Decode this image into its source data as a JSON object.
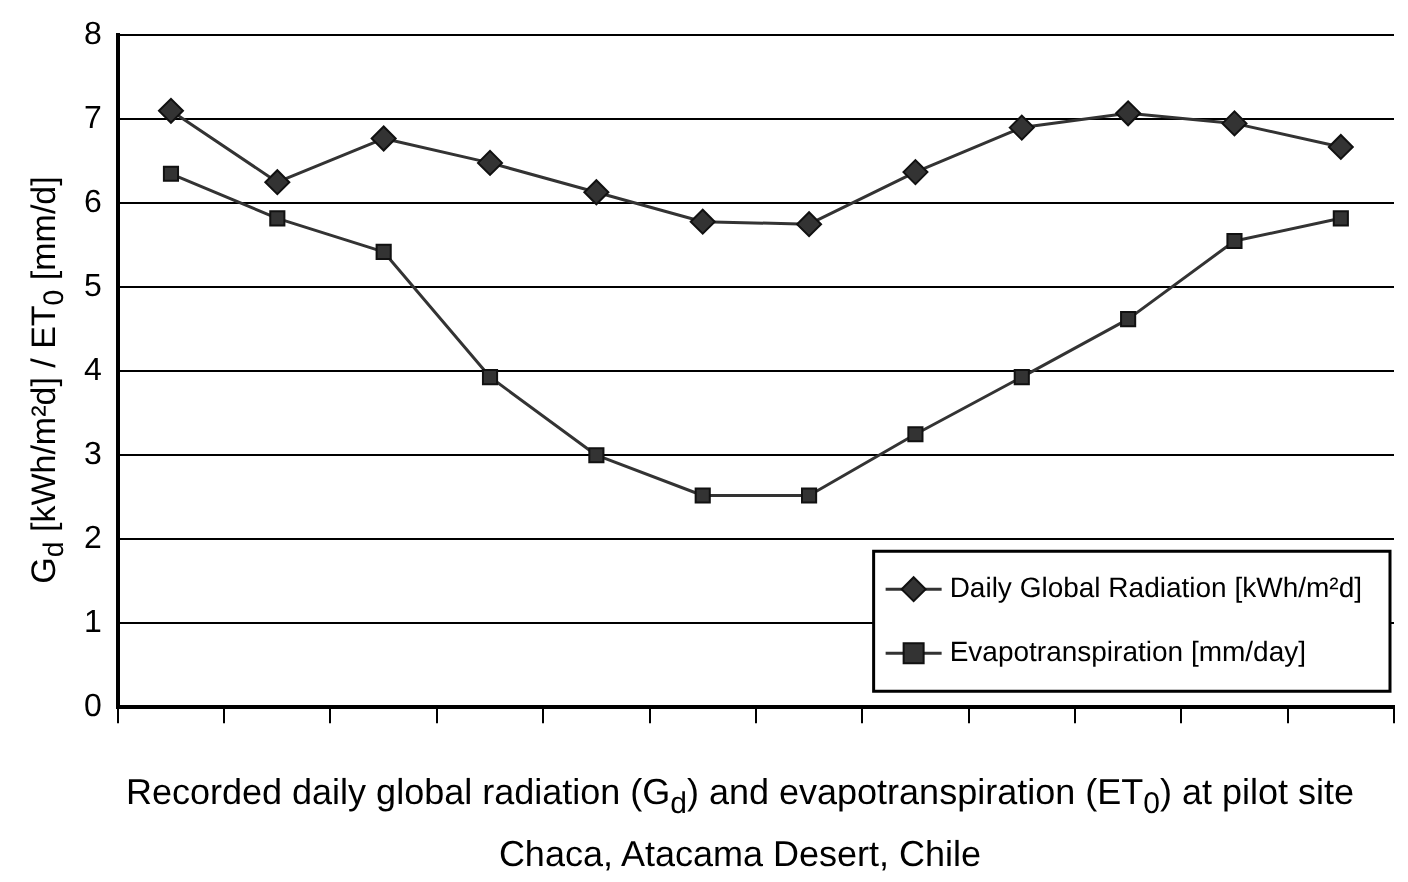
{
  "chart_data": {
    "type": "line",
    "ylabel": "G$_{d}$ [kWh/m²d] / ET$_{0}$ [mm/d]",
    "annotations": [
      "Recorded daily global radiation (G$_{d}$) and evapotranspiration (ET$_{0}$) at pilot site Chaca, Atacama Desert, Chile"
    ],
    "categories": [
      null,
      null,
      null,
      null,
      null,
      null,
      null,
      null,
      null,
      null,
      null,
      null
    ],
    "series": [
      {
        "name": "Daily Global Radiation [kWh/m²d]",
        "color": "#333333",
        "marker": "diamond",
        "values": [
          7.1,
          6.25,
          6.77,
          6.48,
          6.13,
          5.78,
          5.75,
          6.37,
          6.9,
          7.07,
          6.95,
          6.67
        ]
      },
      {
        "name": "Evapotranspiration [mm/day]",
        "color": "#333333",
        "marker": "square",
        "values": [
          6.35,
          5.82,
          5.42,
          3.93,
          3.0,
          2.52,
          2.52,
          3.25,
          3.93,
          4.62,
          5.55,
          5.82
        ]
      }
    ],
    "ylim": [
      0,
      8
    ],
    "yticks": [
      0,
      1,
      2,
      3,
      4,
      5,
      6,
      7,
      8
    ],
    "grid": "y",
    "legend": "bottom right",
    "line_style": "solid"
  }
}
